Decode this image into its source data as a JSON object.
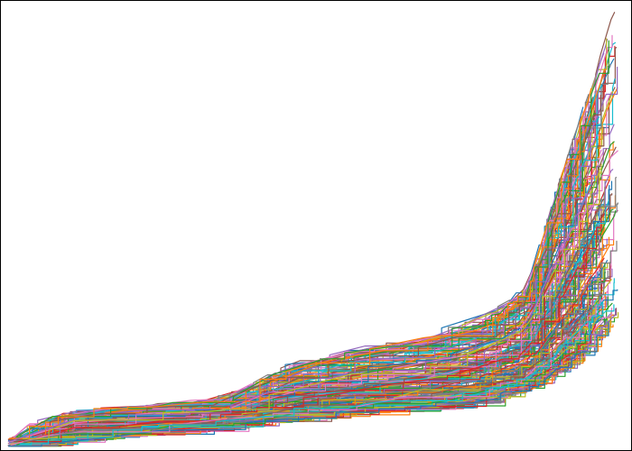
{
  "chart_data": {
    "type": "line",
    "title": "",
    "xlabel": "",
    "ylabel": "",
    "ticks_visible": false,
    "grid": false,
    "legend": "none",
    "series_count": 220,
    "xlim": [
      0,
      1
    ],
    "ylim": [
      0,
      1
    ],
    "palette": [
      "#1f77b4",
      "#ff7f0e",
      "#2ca02c",
      "#d62728",
      "#9467bd",
      "#8c564b",
      "#e377c2",
      "#7f7f7f",
      "#bcbd22",
      "#17becf"
    ],
    "envelope": {
      "x": [
        0.0,
        0.1,
        0.2,
        0.3,
        0.37,
        0.45,
        0.55,
        0.65,
        0.72,
        0.78,
        0.84,
        0.88,
        0.92,
        0.95,
        0.97,
        0.985
      ],
      "lower": [
        0.0,
        0.02,
        0.03,
        0.04,
        0.055,
        0.065,
        0.075,
        0.085,
        0.095,
        0.11,
        0.13,
        0.16,
        0.2,
        0.24,
        0.27,
        0.29
      ],
      "upper": [
        0.03,
        0.08,
        0.09,
        0.1,
        0.12,
        0.18,
        0.22,
        0.24,
        0.27,
        0.3,
        0.36,
        0.55,
        0.72,
        0.85,
        0.95,
        1.0
      ]
    }
  }
}
